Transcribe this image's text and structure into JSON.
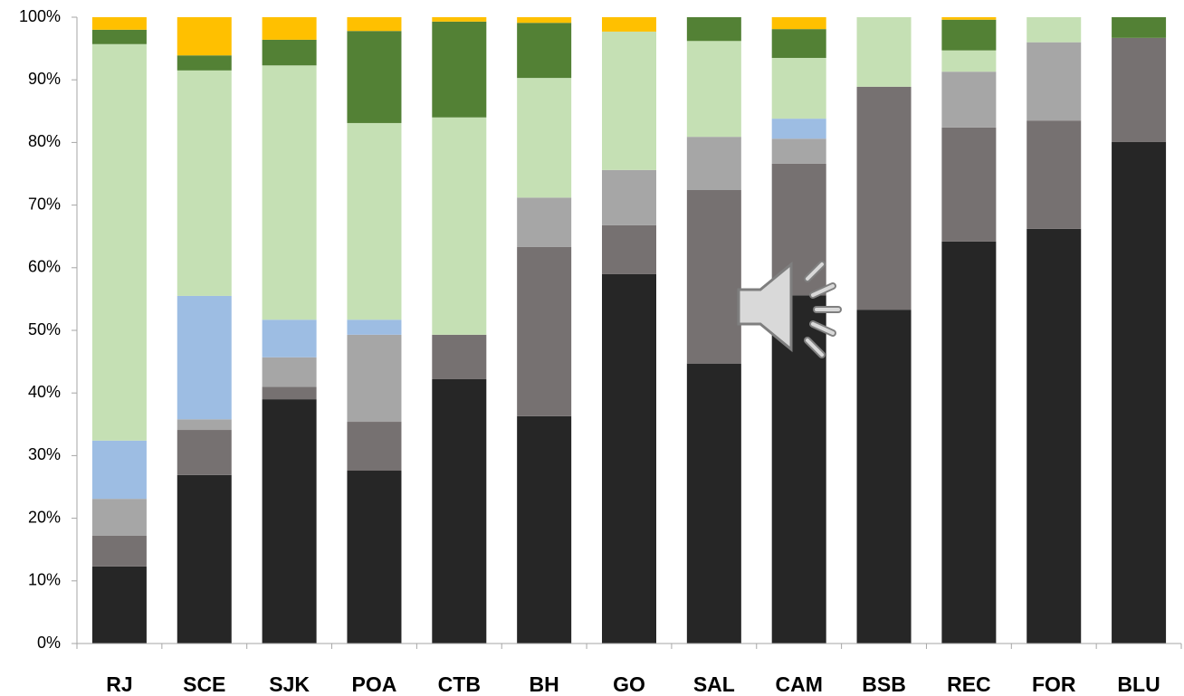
{
  "chart_data": {
    "type": "stacked_bar",
    "categories": [
      "RJ",
      "SCE",
      "SJK",
      "POA",
      "CTB",
      "BH",
      "GO",
      "SAL",
      "CAM",
      "BSB",
      "REC",
      "FOR",
      "BLU"
    ],
    "series": [
      {
        "color": "#262626",
        "values": [
          12.3,
          26.9,
          39.0,
          27.6,
          42.2,
          36.3,
          59.0,
          44.7,
          55.6,
          53.3,
          64.2,
          66.2,
          80.1
        ]
      },
      {
        "color": "#767171",
        "values": [
          4.9,
          7.2,
          2.0,
          7.8,
          7.1,
          27.0,
          7.8,
          27.7,
          21.0,
          35.6,
          18.2,
          17.3,
          16.6
        ]
      },
      {
        "color": "#a6a6a6",
        "values": [
          5.9,
          1.7,
          4.7,
          13.9,
          0,
          7.9,
          8.8,
          8.5,
          4.0,
          0,
          8.9,
          12.5,
          0
        ]
      },
      {
        "color": "#9dbde3",
        "values": [
          9.3,
          19.7,
          6.0,
          2.4,
          0,
          0,
          0,
          0,
          3.2,
          0,
          0,
          0,
          0
        ]
      },
      {
        "color": "#c5e0b4",
        "values": [
          63.3,
          36.0,
          40.6,
          31.4,
          34.7,
          19.1,
          22.1,
          15.3,
          9.7,
          11.1,
          3.4,
          4.0,
          0
        ]
      },
      {
        "color": "#538135",
        "values": [
          2.3,
          2.4,
          4.1,
          14.7,
          15.3,
          8.8,
          0,
          3.8,
          4.6,
          0,
          4.9,
          0,
          3.3
        ]
      },
      {
        "color": "#ffc000",
        "values": [
          2.0,
          6.1,
          3.6,
          2.2,
          0.7,
          0.9,
          2.3,
          0,
          1.9,
          0,
          0.4,
          0,
          0
        ]
      }
    ],
    "ylim": [
      0,
      100
    ],
    "yticks": [
      {
        "value": 0,
        "label": "0%"
      },
      {
        "value": 10,
        "label": "10%"
      },
      {
        "value": 20,
        "label": "20%"
      },
      {
        "value": 30,
        "label": "30%"
      },
      {
        "value": 40,
        "label": "40%"
      },
      {
        "value": 50,
        "label": "50%"
      },
      {
        "value": 60,
        "label": "60%"
      },
      {
        "value": 70,
        "label": "70%"
      },
      {
        "value": 80,
        "label": "80%"
      },
      {
        "value": 90,
        "label": "90%"
      },
      {
        "value": 100,
        "label": "100%"
      }
    ],
    "grid": false
  }
}
